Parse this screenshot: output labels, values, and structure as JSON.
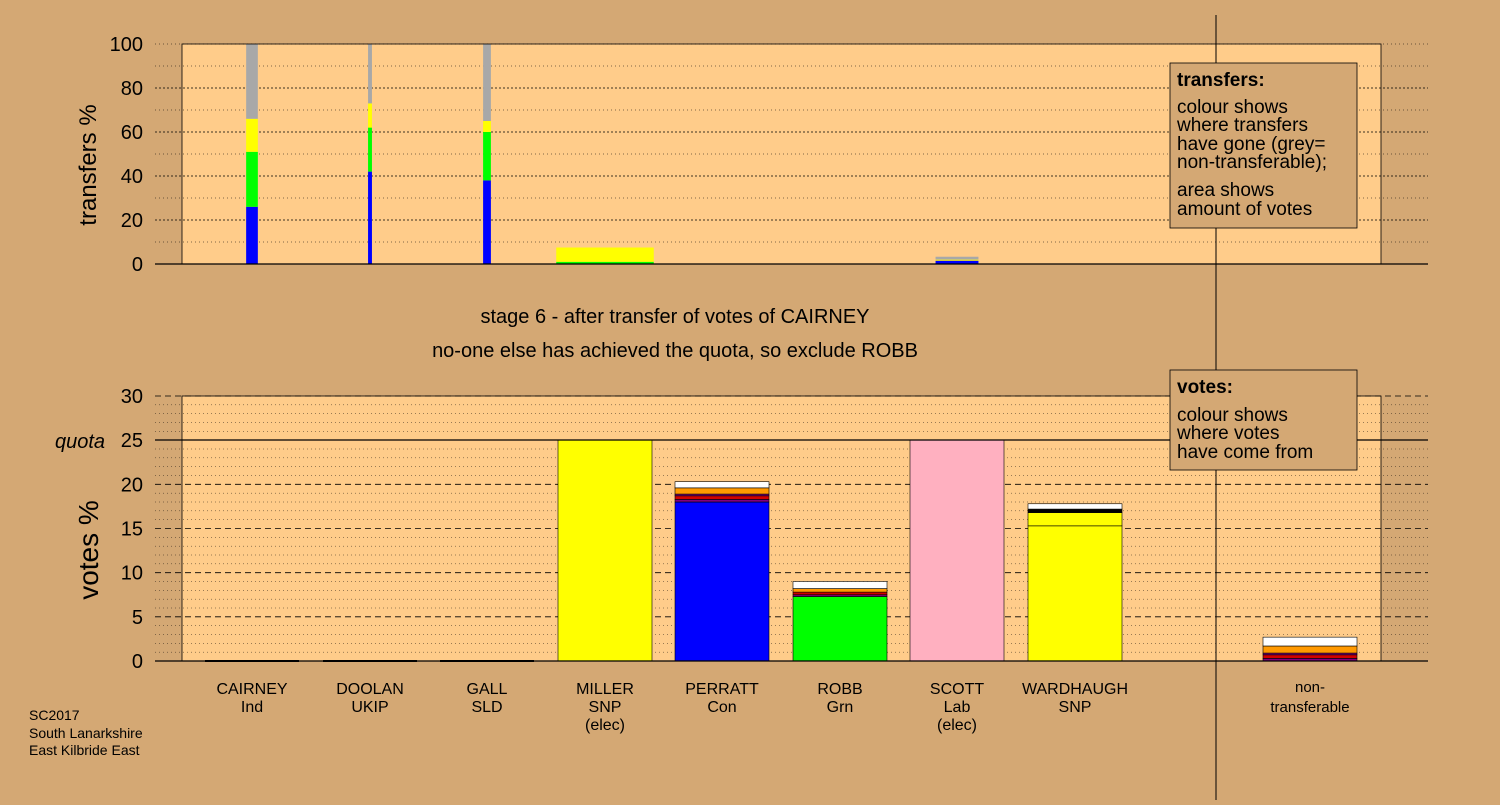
{
  "stage_title": "stage 6 - after transfer of votes of CAIRNEY",
  "stage_subtitle": "no-one else has achieved the quota, so exclude ROBB",
  "footer": [
    "SC2017",
    "South Lanarkshire",
    "East Kilbride East"
  ],
  "colors": {
    "background": "#d4a874",
    "plot": "#ffcc8a",
    "blue": "#0000ff",
    "green": "#00ff00",
    "yellow": "#ffff00",
    "grey": "#a8a8a8",
    "pink": "#ffb0c0",
    "red": "#d00000",
    "orange": "#ff9900",
    "purple": "#800080",
    "black": "#000000",
    "white": "#ffffff"
  },
  "legend_transfers": {
    "title": "transfers:",
    "lines": [
      "colour shows",
      "where transfers",
      "have gone (grey=",
      "non-transferable);",
      "area shows",
      "amount of votes"
    ]
  },
  "legend_votes": {
    "title": "votes:",
    "lines": [
      "colour shows",
      "where votes",
      "have come from"
    ]
  },
  "chart_data": [
    {
      "type": "bar",
      "name": "transfers",
      "ylabel": "transfers %",
      "ylim": [
        0,
        100
      ],
      "yticks": [
        0,
        20,
        40,
        60,
        80,
        100
      ],
      "grid": true,
      "categories": [
        "CAIRNEY",
        "DOOLAN",
        "GALL",
        "MILLER",
        "PERRATT",
        "ROBB",
        "SCOTT",
        "WARDHAUGH"
      ],
      "widths": [
        0.9,
        0.3,
        0.6,
        7.5,
        0,
        0,
        3.3,
        0
      ],
      "stacks": [
        [
          {
            "color": "blue",
            "value": 26
          },
          {
            "color": "green",
            "value": 25
          },
          {
            "color": "yellow",
            "value": 15
          },
          {
            "color": "grey",
            "value": 34
          }
        ],
        [
          {
            "color": "blue",
            "value": 42
          },
          {
            "color": "green",
            "value": 20
          },
          {
            "color": "yellow",
            "value": 11
          },
          {
            "color": "grey",
            "value": 27
          }
        ],
        [
          {
            "color": "blue",
            "value": 38
          },
          {
            "color": "green",
            "value": 22
          },
          {
            "color": "yellow",
            "value": 5
          },
          {
            "color": "grey",
            "value": 35
          }
        ],
        [
          {
            "color": "green",
            "value": 1
          },
          {
            "color": "yellow",
            "value": 6.5
          }
        ],
        [],
        [],
        [
          {
            "color": "blue",
            "value": 1.5
          },
          {
            "color": "yellow",
            "value": 0.5
          },
          {
            "color": "grey",
            "value": 1.3
          }
        ],
        []
      ]
    },
    {
      "type": "bar",
      "name": "votes",
      "ylabel": "votes %",
      "ylim": [
        0,
        30
      ],
      "yticks": [
        0,
        5,
        10,
        15,
        20,
        25,
        30
      ],
      "quota": 25,
      "quota_label": "quota",
      "grid": true,
      "categories": [
        {
          "name": "CAIRNEY",
          "party": "Ind",
          "note": ""
        },
        {
          "name": "DOOLAN",
          "party": "UKIP",
          "note": ""
        },
        {
          "name": "GALL",
          "party": "SLD",
          "note": ""
        },
        {
          "name": "MILLER",
          "party": "SNP",
          "note": "(elec)"
        },
        {
          "name": "PERRATT",
          "party": "Con",
          "note": ""
        },
        {
          "name": "ROBB",
          "party": "Grn",
          "note": ""
        },
        {
          "name": "SCOTT",
          "party": "Lab",
          "note": "(elec)"
        },
        {
          "name": "WARDHAUGH",
          "party": "SNP",
          "note": ""
        }
      ],
      "nontransferable_label": [
        "non-",
        "transferable"
      ],
      "stacks": [
        [],
        [],
        [],
        [
          {
            "color": "yellow",
            "value": 25
          }
        ],
        [
          {
            "color": "blue",
            "value": 18
          },
          {
            "color": "purple",
            "value": 0.3
          },
          {
            "color": "red",
            "value": 0.4
          },
          {
            "color": "purple",
            "value": 0.2
          },
          {
            "color": "orange",
            "value": 0.7
          },
          {
            "color": "white",
            "value": 0.7
          }
        ],
        [
          {
            "color": "green",
            "value": 7.3
          },
          {
            "color": "purple",
            "value": 0.2
          },
          {
            "color": "red",
            "value": 0.3
          },
          {
            "color": "orange",
            "value": 0.4
          },
          {
            "color": "white",
            "value": 0.8
          }
        ],
        [
          {
            "color": "pink",
            "value": 25
          }
        ],
        [
          {
            "color": "yellow",
            "value": 15.3
          },
          {
            "color": "yellow",
            "value": 1.5
          },
          {
            "color": "black",
            "value": 0.4
          },
          {
            "color": "white",
            "value": 0.6
          }
        ]
      ],
      "nontransferable": [
        {
          "color": "purple",
          "value": 0.3
        },
        {
          "color": "red",
          "value": 0.4
        },
        {
          "color": "purple",
          "value": 0.2
        },
        {
          "color": "orange",
          "value": 0.8
        },
        {
          "color": "white",
          "value": 1.0
        }
      ]
    }
  ]
}
